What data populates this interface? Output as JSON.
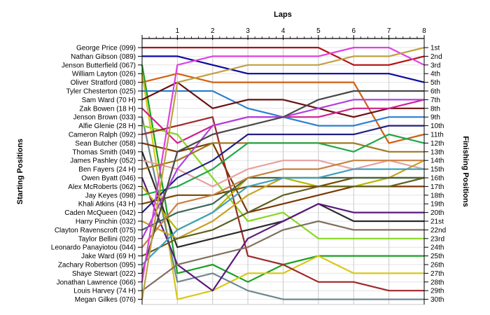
{
  "chart_data": {
    "type": "line",
    "title": "",
    "xlabel": "Laps",
    "ylabel_left": "Starting Positions",
    "ylabel_right": "Finishing Positions",
    "x": [
      0,
      1,
      2,
      3,
      4,
      5,
      6,
      7,
      8
    ],
    "x_tick_labels": [
      "1",
      "2",
      "3",
      "4",
      "5",
      "6",
      "7",
      "8"
    ],
    "ylim": [
      1,
      30
    ],
    "y_inverted": true,
    "grid": true,
    "finish_labels": [
      "1st",
      "2nd",
      "3rd",
      "4th",
      "5th",
      "6th",
      "7th",
      "8th",
      "9th",
      "10th",
      "11th",
      "12th",
      "13th",
      "14th",
      "15th",
      "16th",
      "17th",
      "18th",
      "19th",
      "20th",
      "21st",
      "22nd",
      "23rd",
      "24th",
      "25th",
      "26th",
      "27th",
      "28th",
      "29th",
      "30th"
    ],
    "series": [
      {
        "name": "George Price (099)",
        "color": "#b01010",
        "values": [
          1,
          1,
          1,
          1,
          1,
          1,
          3,
          3,
          2
        ]
      },
      {
        "name": "Nathan Gibson (089)",
        "color": "#0a0aa0",
        "values": [
          2,
          2,
          3,
          4,
          4,
          4,
          4,
          4,
          5
        ]
      },
      {
        "name": "Jenson Butterfield (067)",
        "color": "#18a020",
        "values": [
          3,
          27,
          26,
          28,
          26,
          25,
          25,
          25,
          25
        ]
      },
      {
        "name": "William Layton (026)",
        "color": "#d8c818",
        "values": [
          4,
          30,
          29,
          27,
          27,
          25,
          27,
          27,
          27
        ]
      },
      {
        "name": "Oliver Stratford (080)",
        "color": "#d06010",
        "values": [
          5,
          4,
          5,
          5,
          5,
          5,
          5,
          12,
          11
        ]
      },
      {
        "name": "Tyler Chesterton (025)",
        "color": "#2b80d0",
        "values": [
          6,
          6,
          6,
          8,
          9,
          10,
          10,
          9,
          9
        ]
      },
      {
        "name": "Sam Ward (70 H)",
        "color": "#6a1010",
        "values": [
          7,
          5,
          8,
          7,
          7,
          8,
          9,
          8,
          8
        ]
      },
      {
        "name": "Zak Bowen (18 H)",
        "color": "#d02090",
        "values": [
          8,
          12,
          10,
          9,
          9,
          9,
          8,
          8,
          7
        ]
      },
      {
        "name": "Jenson Brown (033)",
        "color": "#708890",
        "values": [
          9,
          28,
          27,
          29,
          30,
          30,
          30,
          30,
          30
        ]
      },
      {
        "name": "Alfie Glenie (28 H)",
        "color": "#88d820",
        "values": [
          10,
          11,
          16,
          21,
          20,
          23,
          23,
          23,
          23
        ]
      },
      {
        "name": "Cameron Ralph (092)",
        "color": "#a02828",
        "values": [
          11,
          10,
          9,
          25,
          26,
          28,
          28,
          29,
          29
        ]
      },
      {
        "name": "Sean Butcher (058)",
        "color": "#7a3800",
        "values": [
          12,
          13,
          12,
          20,
          19,
          18,
          17,
          17,
          17
        ]
      },
      {
        "name": "Thomas Smith (049)",
        "color": "#2a2a2a",
        "values": [
          13,
          24,
          23,
          22,
          21,
          19,
          21,
          21,
          21
        ]
      },
      {
        "name": "James Pashley (052)",
        "color": "#e8a0a0",
        "values": [
          14,
          15,
          17,
          15,
          14,
          14,
          15,
          14,
          15
        ]
      },
      {
        "name": "Ben Fayers (24 H)",
        "color": "#a07820",
        "values": [
          15,
          14,
          12,
          12,
          12,
          12,
          12,
          13,
          13
        ]
      },
      {
        "name": "Owen Byatt (046)",
        "color": "#5a1a7a",
        "values": [
          16,
          26,
          29,
          23,
          21,
          19,
          20,
          20,
          20
        ]
      },
      {
        "name": "Alex McRoberts (062)",
        "color": "#b8b800",
        "values": [
          17,
          22,
          20,
          16,
          16,
          17,
          17,
          16,
          16
        ]
      },
      {
        "name": "Jay Keyes (098)",
        "color": "#20a848",
        "values": [
          18,
          17,
          15,
          12,
          12,
          12,
          13,
          11,
          12
        ]
      },
      {
        "name": "Khali Atkins (43 H)",
        "color": "#784800",
        "values": [
          19,
          18,
          18,
          17,
          17,
          17,
          16,
          16,
          16
        ]
      },
      {
        "name": "Caden McQueen (042)",
        "color": "#202080",
        "values": [
          20,
          16,
          14,
          11,
          11,
          11,
          11,
          10,
          10
        ]
      },
      {
        "name": "Harry Pinchin (032)",
        "color": "#c8a020",
        "values": [
          21,
          23,
          21,
          18,
          16,
          16,
          16,
          16,
          14
        ]
      },
      {
        "name": "Clayton Ravenscroft (075)",
        "color": "#3a6858",
        "values": [
          22,
          20,
          19,
          16,
          16,
          16,
          16,
          16,
          16
        ]
      },
      {
        "name": "Taylor Bellini (020)",
        "color": "#b040e0",
        "values": [
          23,
          15,
          10,
          9,
          9,
          8,
          7,
          7,
          7
        ]
      },
      {
        "name": "Leonardo Panayiotou (044)",
        "color": "#c88040",
        "values": [
          24,
          19,
          18,
          16,
          15,
          15,
          14,
          14,
          14
        ]
      },
      {
        "name": "Jake Ward (69 H)",
        "color": "#606020",
        "values": [
          25,
          23,
          22,
          20,
          18,
          17,
          17,
          17,
          16
        ]
      },
      {
        "name": "Zachary Robertson (095)",
        "color": "#40a0c0",
        "values": [
          26,
          22,
          20,
          17,
          16,
          16,
          15,
          15,
          15
        ]
      },
      {
        "name": "Shaye Stewart (022)",
        "color": "#484848",
        "values": [
          27,
          13,
          11,
          10,
          9,
          7,
          6,
          6,
          6
        ]
      },
      {
        "name": "Jonathan Lawrence (066)",
        "color": "#e040e0",
        "values": [
          28,
          3,
          2,
          2,
          2,
          2,
          1,
          1,
          3
        ]
      },
      {
        "name": "Louis Harvey (74 H)",
        "color": "#807060",
        "values": [
          29,
          26,
          25,
          24,
          22,
          21,
          22,
          22,
          22
        ]
      },
      {
        "name": "Megan Gilkes (076)",
        "color": "#c0a040",
        "values": [
          30,
          5,
          4,
          3,
          3,
          3,
          2,
          2,
          1
        ]
      }
    ]
  }
}
